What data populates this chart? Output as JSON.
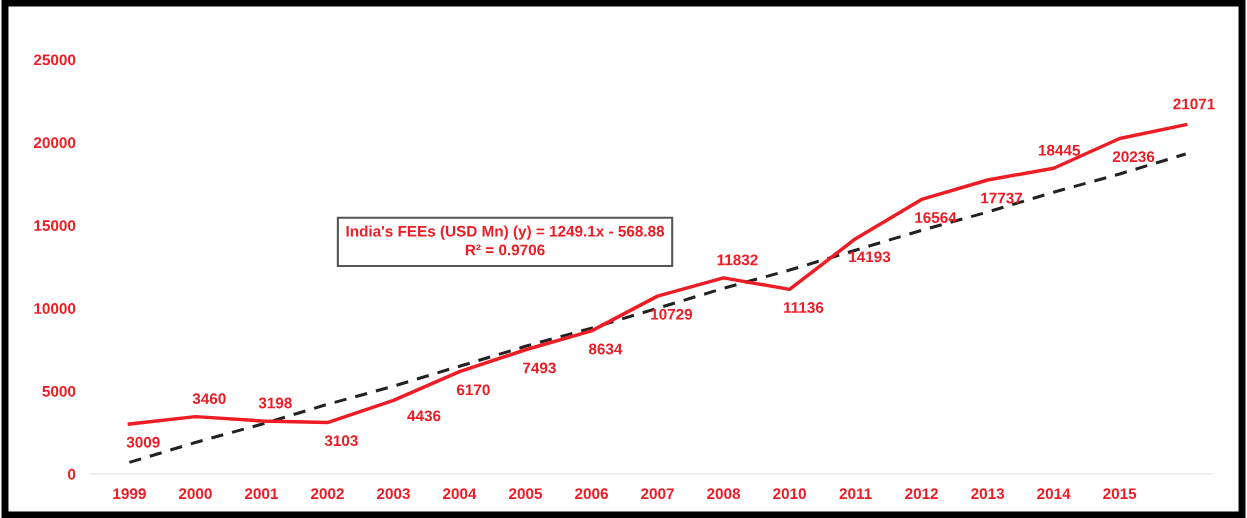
{
  "chart_data": {
    "type": "line",
    "categories": [
      "1999",
      "2000",
      "2001",
      "2002",
      "2003",
      "2004",
      "2005",
      "2006",
      "2007",
      "2008",
      "2010",
      "2011",
      "2012",
      "2013",
      "2014",
      "2015",
      null
    ],
    "series": [
      {
        "color": "#ee1c25",
        "values": [
          3009,
          3460,
          3198,
          3103,
          4436,
          6170,
          7493,
          8634,
          10729,
          11832,
          11136,
          14193,
          16564,
          17737,
          18445,
          20236,
          21071
        ],
        "value_labels": [
          "3009",
          "3460",
          "3198",
          "3103",
          "4436",
          "6170",
          "7493",
          "8634",
          "10729",
          "11832",
          "11136",
          "14193",
          "16564",
          "17737",
          "18445",
          "20236",
          "21071"
        ]
      },
      {
        "type": "line",
        "color": "#222222",
        "line_style": "dashed",
        "values": [
          700,
          1900,
          3000,
          4200,
          5300,
          6500,
          7700,
          8800,
          10000,
          11200,
          12300,
          13500,
          14700,
          15800,
          17000,
          18100,
          19300
        ]
      }
    ],
    "ylim": [
      0,
      25000
    ],
    "yticks": [
      0,
      5000,
      10000,
      15000,
      20000,
      25000
    ],
    "grid": false,
    "legend": false,
    "marker": "none",
    "annotations": [
      "India's FEEs (USD Mn) (y) = 1249.1x - 568.88\nR² = 0.9706"
    ]
  }
}
